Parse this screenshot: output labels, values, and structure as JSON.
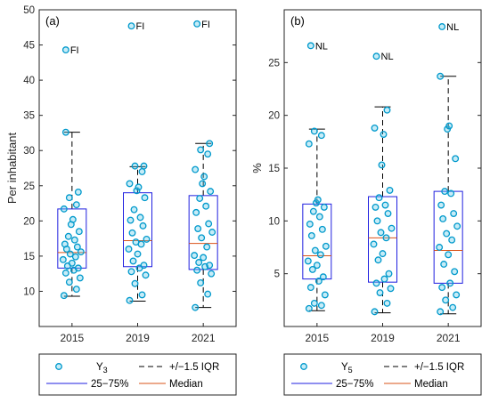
{
  "chart_data": [
    {
      "type": "box",
      "panel_label": "(a)",
      "ylabel": "Per inhabitant",
      "ylim": [
        5,
        50
      ],
      "yticks": [
        10,
        15,
        20,
        25,
        30,
        35,
        40,
        45,
        50
      ],
      "categories": [
        "2015",
        "2019",
        "2021"
      ],
      "boxes": [
        {
          "q1": 13.3,
          "median": 15.5,
          "q3": 21.7,
          "whisker_low": 9.3,
          "whisker_high": 32.6,
          "points": [
            9.4,
            10.3,
            11.3,
            11.9,
            12.6,
            13.0,
            13.3,
            13.6,
            14.0,
            14.5,
            14.9,
            15.3,
            15.6,
            16.0,
            16.3,
            16.7,
            17.3,
            17.8,
            18.5,
            19.5,
            20.2,
            21.7,
            22.3,
            23.3,
            24.1,
            32.6,
            44.3
          ],
          "outlier": {
            "value": 44.3,
            "label": "FI"
          }
        },
        {
          "q1": 13.5,
          "median": 17.2,
          "q3": 24.0,
          "whisker_low": 8.6,
          "whisker_high": 27.7,
          "points": [
            8.7,
            9.5,
            11.1,
            12.3,
            12.8,
            13.3,
            13.7,
            14.3,
            15.3,
            16.0,
            16.7,
            17.0,
            17.4,
            18.3,
            19.3,
            20.1,
            20.5,
            21.6,
            23.3,
            24.3,
            24.8,
            25.3,
            27.0,
            27.8,
            27.8,
            47.7
          ],
          "outlier": {
            "value": 47.7,
            "label": "FI"
          }
        },
        {
          "q1": 13.1,
          "median": 16.8,
          "q3": 23.6,
          "whisker_low": 7.7,
          "whisker_high": 31.0,
          "points": [
            7.7,
            9.6,
            11.2,
            12.5,
            13.0,
            13.5,
            13.7,
            14.1,
            14.8,
            15.1,
            16.3,
            17.6,
            18.4,
            18.9,
            19.6,
            21.2,
            22.1,
            23.2,
            24.2,
            25.3,
            26.3,
            27.3,
            29.5,
            30.1,
            31.0,
            48.0
          ],
          "outlier": {
            "value": 48.0,
            "label": "FI"
          }
        }
      ],
      "legend": {
        "points": "Y",
        "points_sub": "3",
        "whisker": "+/−1.5 IQR",
        "box": "25−75%",
        "median": "Median"
      }
    },
    {
      "type": "box",
      "panel_label": "(b)",
      "ylabel": "%",
      "ylim": [
        0,
        30
      ],
      "yticks": [
        5,
        10,
        15,
        20,
        25
      ],
      "categories": [
        "2015",
        "2019",
        "2021"
      ],
      "boxes": [
        {
          "q1": 4.5,
          "median": 6.7,
          "q3": 11.6,
          "whisker_low": 1.5,
          "whisker_high": 18.7,
          "points": [
            1.7,
            2.0,
            2.2,
            3.0,
            3.7,
            4.3,
            4.7,
            5.4,
            5.8,
            6.2,
            6.8,
            7.2,
            7.6,
            8.6,
            9.2,
            9.7,
            10.4,
            10.9,
            11.3,
            11.7,
            12.0,
            17.3,
            18.1,
            18.5,
            26.6
          ],
          "outlier": {
            "value": 26.6,
            "label": "NL"
          }
        },
        {
          "q1": 4.2,
          "median": 8.4,
          "q3": 12.3,
          "whisker_low": 1.3,
          "whisker_high": 20.8,
          "points": [
            1.4,
            2.2,
            3.2,
            3.6,
            4.1,
            4.5,
            5.0,
            6.3,
            6.9,
            7.8,
            8.4,
            8.9,
            9.3,
            10.0,
            10.7,
            11.3,
            11.5,
            12.2,
            12.9,
            15.3,
            18.2,
            18.8,
            20.5,
            25.6
          ],
          "outlier": {
            "value": 25.6,
            "label": "NL"
          }
        },
        {
          "q1": 4.1,
          "median": 7.2,
          "q3": 12.8,
          "whisker_low": 1.2,
          "whisker_high": 23.7,
          "points": [
            1.4,
            1.8,
            2.5,
            3.0,
            3.7,
            4.1,
            5.2,
            5.9,
            6.8,
            7.5,
            8.2,
            8.8,
            9.5,
            10.2,
            10.7,
            11.5,
            12.6,
            12.8,
            15.9,
            18.7,
            19.0,
            23.7,
            28.4
          ],
          "outlier": {
            "value": 28.4,
            "label": "NL"
          }
        }
      ],
      "legend": {
        "points": "Y",
        "points_sub": "5",
        "whisker": "+/−1.5 IQR",
        "box": "25−75%",
        "median": "Median"
      }
    }
  ],
  "colors": {
    "box": "#1f1fe0",
    "median": "#d95319",
    "points": "#0099cc",
    "whisker": "#000000",
    "axis": "#262626"
  }
}
